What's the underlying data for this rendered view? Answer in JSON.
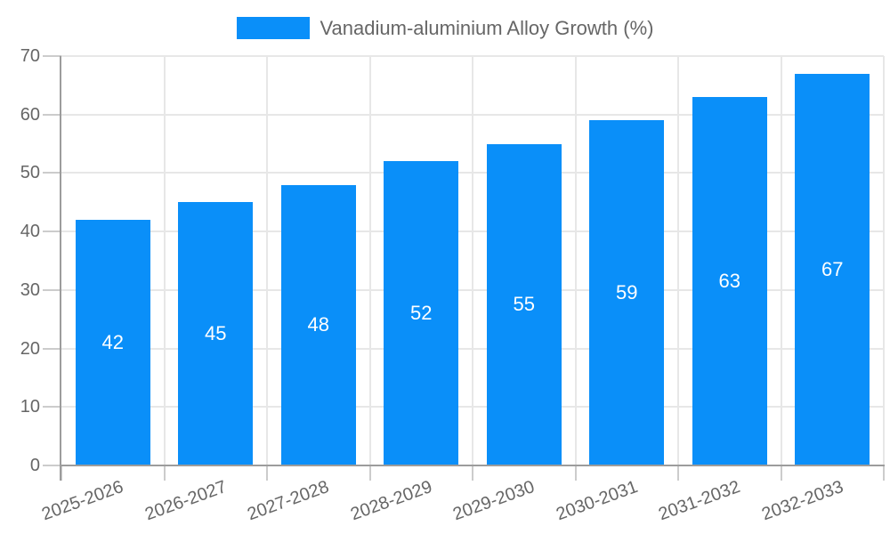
{
  "chart_data": {
    "type": "bar",
    "title": "Vanadium-aluminium Alloy Growth (%)",
    "legend": {
      "label": "Vanadium-aluminium Alloy Growth (%)",
      "position": "top"
    },
    "categories": [
      "2025-2026",
      "2026-2027",
      "2027-2028",
      "2028-2029",
      "2029-2030",
      "2030-2031",
      "2031-2032",
      "2032-2033"
    ],
    "values": [
      42,
      45,
      48,
      52,
      55,
      59,
      63,
      67
    ],
    "value_labels": [
      "42",
      "45",
      "48",
      "52",
      "55",
      "59",
      "63",
      "67"
    ],
    "xlabel": "",
    "ylabel": "",
    "ylim": [
      0,
      70
    ],
    "yticks": [
      0,
      10,
      20,
      30,
      40,
      50,
      60,
      70
    ],
    "grid": true,
    "x_label_rotation_deg": -20,
    "colors": {
      "bar": "#0a8ff9",
      "value_label": "#ffffff",
      "axis_line": "#9c9c9c",
      "gridline": "#e7e7e7",
      "tick": "#cccccc",
      "axis_text": "#666666"
    }
  }
}
